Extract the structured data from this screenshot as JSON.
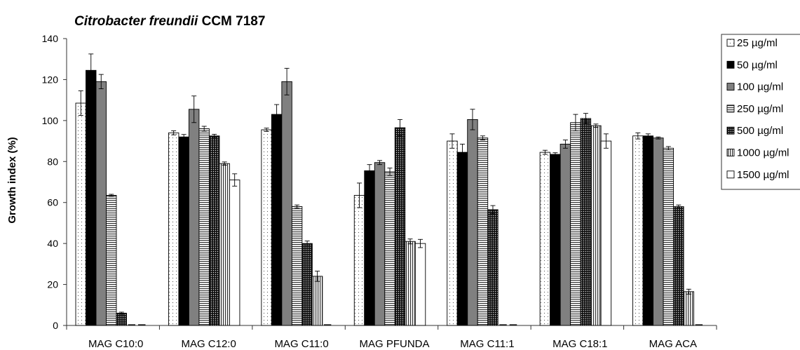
{
  "chart_data": {
    "type": "bar",
    "title_italic": "Citrobacter freundii",
    "title_rest": " CCM 7187",
    "ylabel": "Growth index (%)",
    "xlabel": "",
    "ylim": [
      0,
      140
    ],
    "yticks": [
      0,
      20,
      40,
      60,
      80,
      100,
      120,
      140
    ],
    "legend_position": "right",
    "grid": false,
    "categories": [
      "MAG C10:0",
      "MAG C12:0",
      "MAG C11:0",
      "MAG PFUNDA",
      "MAG C11:1",
      "MAG C18:1",
      "MAG ACA"
    ],
    "series": [
      {
        "name": "25 µg/ml",
        "pattern": "dots-sparse",
        "values": [
          108.5,
          94,
          95.5,
          63.5,
          90,
          84.5,
          92.5
        ],
        "errors": [
          6,
          1,
          0.8,
          6,
          3.5,
          1,
          1.5
        ]
      },
      {
        "name": "50 µg/ml",
        "pattern": "solid-black",
        "values": [
          124.5,
          92,
          103,
          75.5,
          84.5,
          83.5,
          92.5
        ],
        "errors": [
          8,
          1.2,
          4.8,
          3,
          4,
          0.8,
          1
        ]
      },
      {
        "name": "100 µg/ml",
        "pattern": "solid-gray",
        "values": [
          119,
          105.5,
          119,
          79.5,
          100.5,
          88.5,
          91.5
        ],
        "errors": [
          3.5,
          6.5,
          6.5,
          1,
          5,
          2,
          0.5
        ]
      },
      {
        "name": "250 µg/ml",
        "pattern": "hlines",
        "values": [
          63.5,
          96,
          58,
          75,
          91.5,
          99,
          86.5
        ],
        "errors": [
          0.5,
          1.2,
          0.8,
          1.8,
          1,
          4,
          0.8
        ]
      },
      {
        "name": "500 µg/ml",
        "pattern": "dots-dense",
        "values": [
          6,
          92.5,
          40,
          96.5,
          56.5,
          101,
          58
        ],
        "errors": [
          0.5,
          0.8,
          1.2,
          4,
          2,
          2.5,
          0.8
        ]
      },
      {
        "name": "1000 µg/ml",
        "pattern": "vlines",
        "values": [
          0,
          79,
          24,
          41,
          0,
          97.5,
          16.5
        ],
        "errors": [
          0,
          0.8,
          2.5,
          1.2,
          0,
          0.8,
          1.2
        ]
      },
      {
        "name": "1500 µg/ml",
        "pattern": "white",
        "values": [
          0,
          71,
          0,
          40,
          0,
          90,
          0
        ],
        "errors": [
          0,
          3,
          0,
          2,
          0,
          3.5,
          0
        ]
      }
    ]
  }
}
